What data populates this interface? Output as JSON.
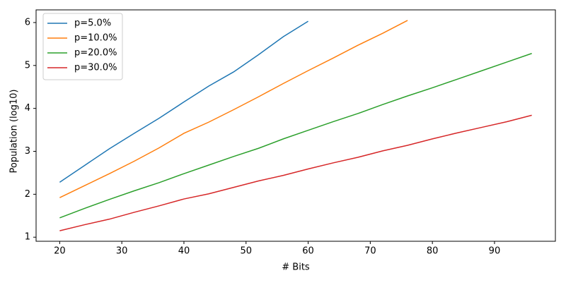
{
  "chart_data": {
    "type": "line",
    "xlabel": "# Bits",
    "ylabel": "Population (log10)",
    "xlim": [
      16.2,
      99.8
    ],
    "ylim": [
      0.905,
      6.295
    ],
    "xticks": [
      20,
      30,
      40,
      50,
      60,
      70,
      80,
      90
    ],
    "yticks": [
      1,
      2,
      3,
      4,
      5,
      6
    ],
    "legend": "upper left",
    "grid": false,
    "series": [
      {
        "name": "p=5.0%",
        "color": "#1f77b4",
        "x": [
          20,
          24,
          28,
          32,
          36,
          40,
          44,
          48,
          52,
          56,
          60
        ],
        "values": [
          2.28,
          2.67,
          3.06,
          3.42,
          3.77,
          4.15,
          4.52,
          4.85,
          5.25,
          5.67,
          6.03
        ]
      },
      {
        "name": "p=10.0%",
        "color": "#ff7f0e",
        "x": [
          20,
          24,
          28,
          32,
          36,
          40,
          44,
          48,
          52,
          56,
          60,
          64,
          68,
          72,
          76
        ],
        "values": [
          1.92,
          2.2,
          2.48,
          2.77,
          3.08,
          3.42,
          3.68,
          3.97,
          4.27,
          4.58,
          4.88,
          5.17,
          5.47,
          5.75,
          6.05
        ]
      },
      {
        "name": "p=20.0%",
        "color": "#2ca02c",
        "x": [
          20,
          24,
          28,
          32,
          36,
          40,
          44,
          48,
          52,
          56,
          60,
          64,
          68,
          72,
          76,
          80,
          84,
          88,
          92,
          96
        ],
        "values": [
          1.45,
          1.67,
          1.88,
          2.08,
          2.27,
          2.48,
          2.68,
          2.88,
          3.07,
          3.29,
          3.49,
          3.69,
          3.88,
          4.09,
          4.29,
          4.48,
          4.68,
          4.88,
          5.08,
          5.28
        ]
      },
      {
        "name": "p=30.0%",
        "color": "#d62728",
        "x": [
          20,
          24,
          28,
          32,
          36,
          40,
          44,
          48,
          52,
          56,
          60,
          64,
          68,
          72,
          76,
          80,
          84,
          88,
          92,
          96
        ],
        "values": [
          1.15,
          1.29,
          1.42,
          1.58,
          1.73,
          1.89,
          2.01,
          2.16,
          2.31,
          2.44,
          2.59,
          2.73,
          2.86,
          3.01,
          3.14,
          3.29,
          3.43,
          3.56,
          3.69,
          3.84
        ]
      }
    ]
  }
}
